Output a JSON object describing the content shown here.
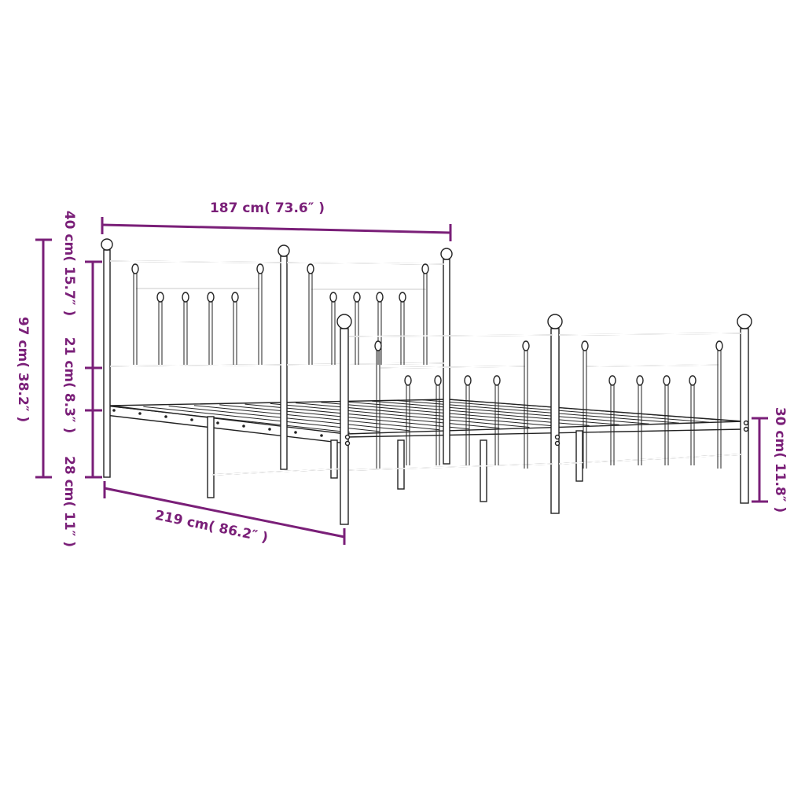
{
  "dimensions": {
    "headboard_width": "187 cm( 73.6″ )",
    "total_height": "97 cm( 38.2″ )",
    "headboard_top_section": "40 cm( 15.7″ )",
    "middle_section": "21 cm( 8.3″ )",
    "under_bed_clearance": "28 cm( 11″ )",
    "total_length": "219 cm( 86.2″ )",
    "footboard_height": "30 cm( 11.8″ )"
  },
  "colors": {
    "dimension_lines": "#7a1f78",
    "drawing_lines": "#222222"
  },
  "subject": "metal bed frame with headboard and footboard"
}
